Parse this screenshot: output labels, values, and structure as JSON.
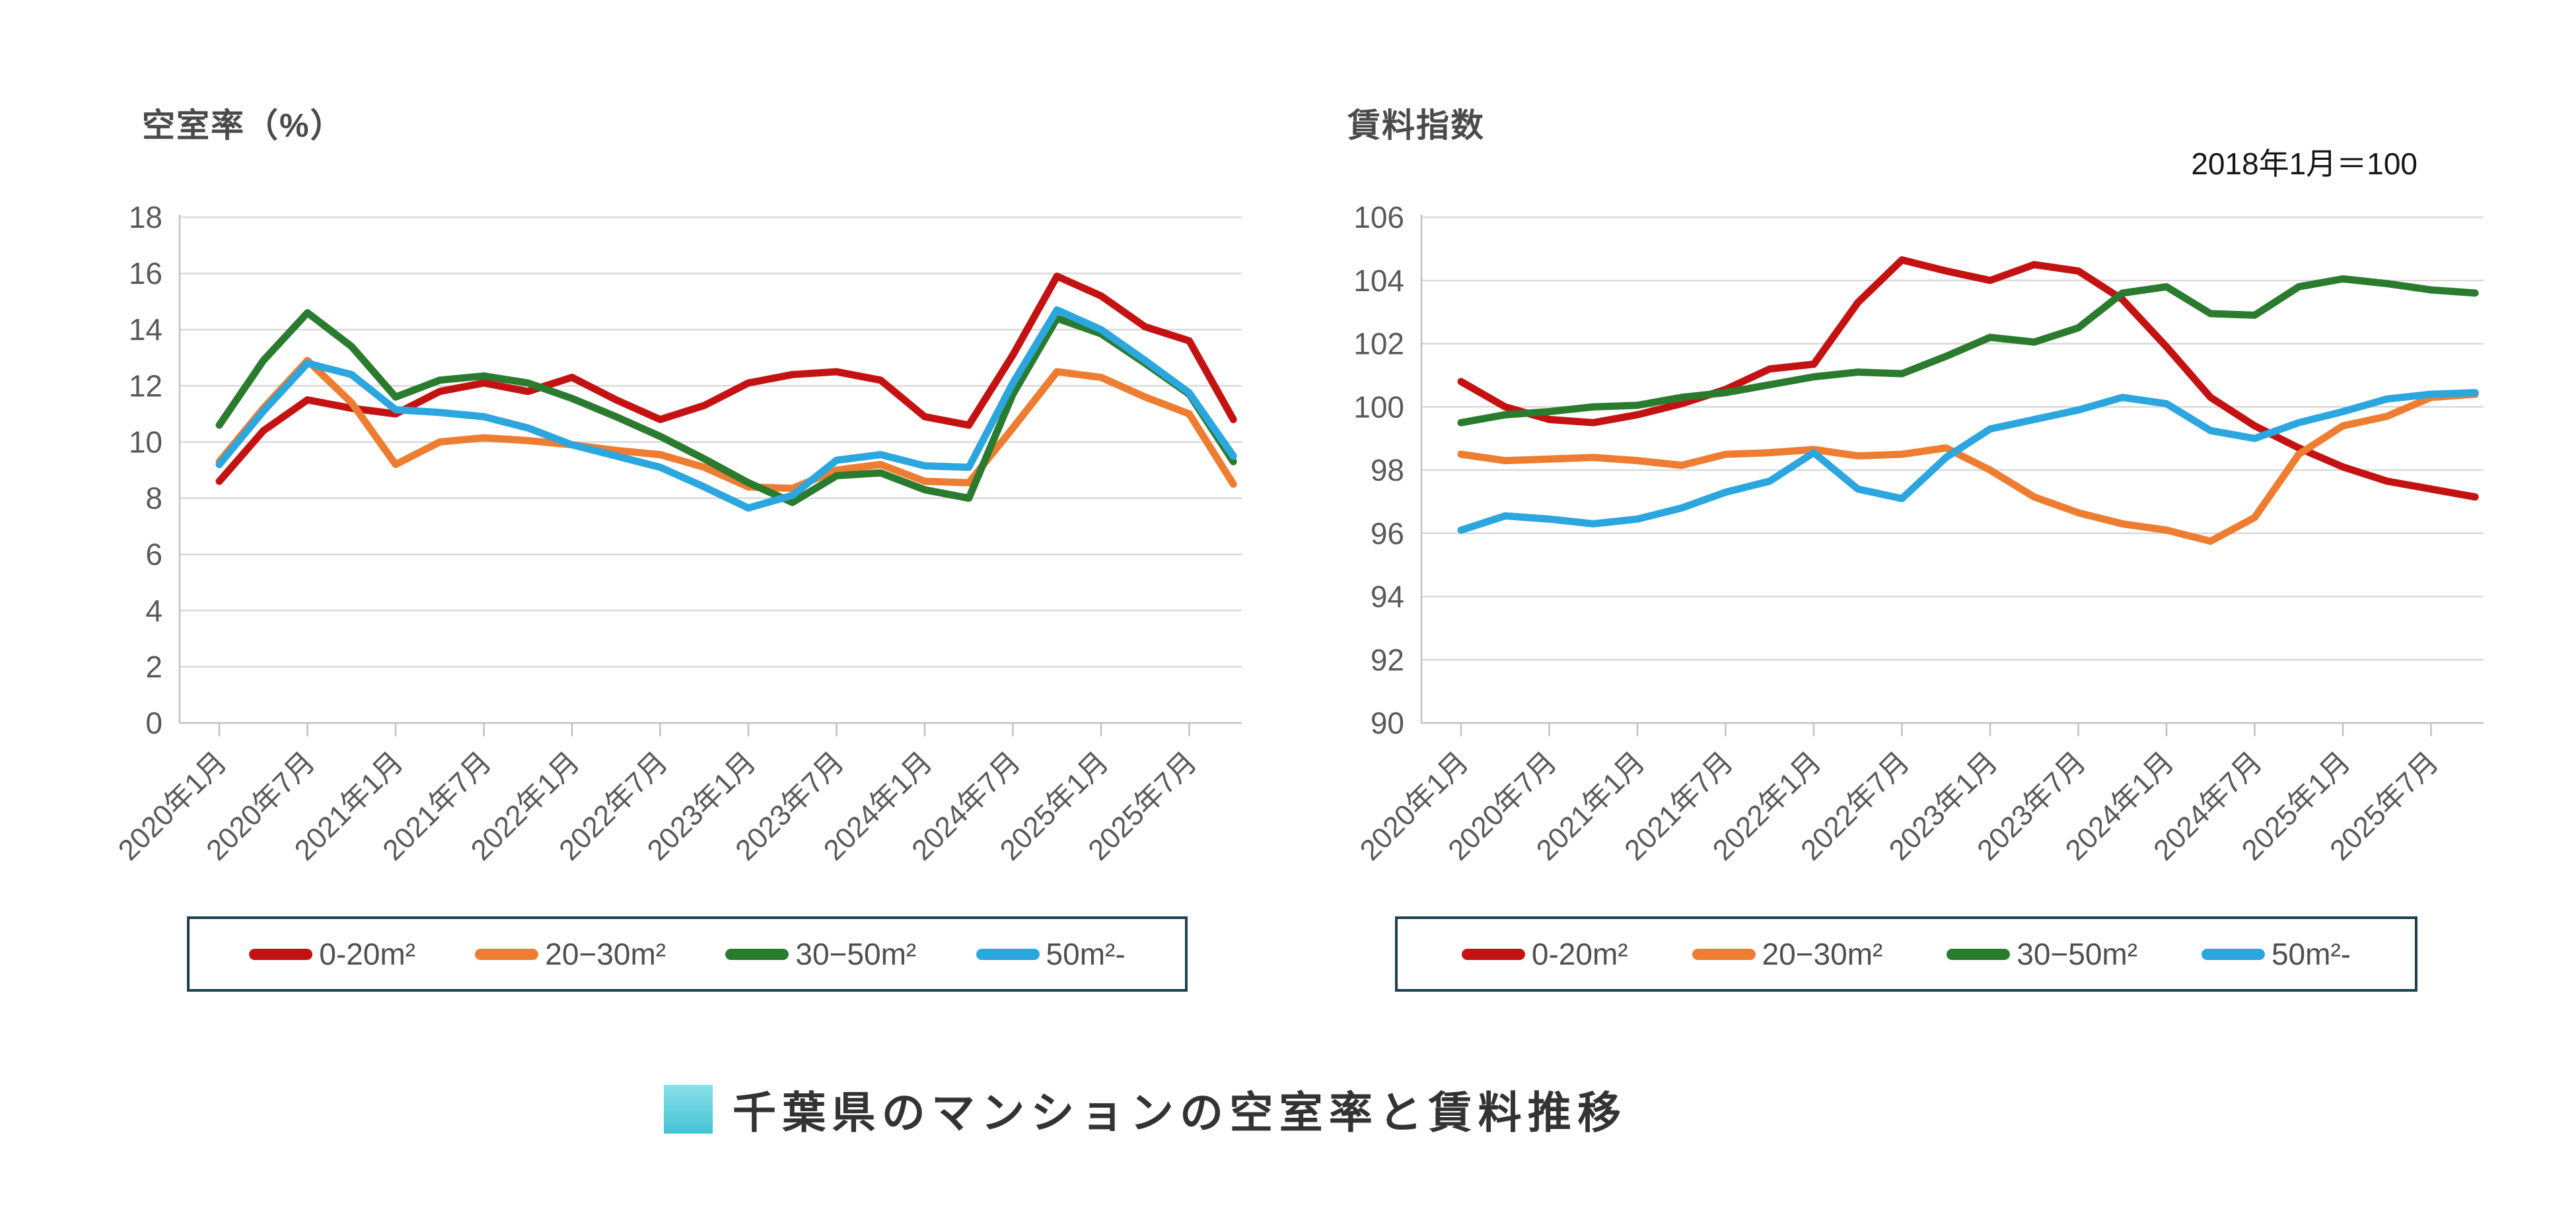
{
  "page": {
    "background": "#ffffff"
  },
  "legend": {
    "border_color": "#1b4050",
    "items": [
      {
        "label": "0-20m²",
        "color": "#c41212"
      },
      {
        "label": "20−30m²",
        "color": "#ee7d31"
      },
      {
        "label": "30−50m²",
        "color": "#2a7b2e"
      },
      {
        "label": "50m²-",
        "color": "#2ba6de"
      }
    ]
  },
  "footer": {
    "title": "千葉県のマンションの空室率と賃料推移",
    "square_color": "#4ac6d6"
  },
  "chart_data": [
    {
      "type": "line",
      "title": "空室率（%）",
      "xlabel": "",
      "ylabel": "",
      "ylim": [
        0,
        18
      ],
      "ytick_step": 2,
      "grid": true,
      "legend_position": "bottom-box",
      "x_tick_labels": [
        "2020年1月",
        "2020年7月",
        "2021年1月",
        "2021年7月",
        "2022年1月",
        "2022年7月",
        "2023年1月",
        "2023年7月",
        "2024年1月",
        "2024年7月",
        "2025年1月",
        "2025年7月"
      ],
      "x_quarterly": [
        "2020-01",
        "2020-04",
        "2020-07",
        "2020-10",
        "2021-01",
        "2021-04",
        "2021-07",
        "2021-10",
        "2022-01",
        "2022-04",
        "2022-07",
        "2022-10",
        "2023-01",
        "2023-04",
        "2023-07",
        "2023-10",
        "2024-01",
        "2024-04",
        "2024-07",
        "2024-10",
        "2025-01",
        "2025-04",
        "2025-07",
        "2025-10"
      ],
      "series": [
        {
          "name": "0-20m²",
          "color": "#c41212",
          "values": [
            8.6,
            10.4,
            11.5,
            11.2,
            11.0,
            11.8,
            12.1,
            11.8,
            12.3,
            11.5,
            10.8,
            11.3,
            12.1,
            12.4,
            12.5,
            12.2,
            10.9,
            10.6,
            13.1,
            15.9,
            15.2,
            14.1,
            13.6,
            10.8
          ]
        },
        {
          "name": "20−30m²",
          "color": "#ee7d31",
          "values": [
            9.3,
            11.2,
            12.9,
            11.4,
            9.2,
            10.0,
            10.15,
            10.05,
            9.9,
            9.7,
            9.55,
            9.1,
            8.4,
            8.35,
            9.0,
            9.2,
            8.6,
            8.55,
            10.5,
            12.5,
            12.3,
            11.6,
            11.0,
            8.5
          ]
        },
        {
          "name": "30−50m²",
          "color": "#2a7b2e",
          "values": [
            10.6,
            12.9,
            14.6,
            13.4,
            11.6,
            12.2,
            12.35,
            12.1,
            11.55,
            10.9,
            10.2,
            9.4,
            8.55,
            7.85,
            8.8,
            8.9,
            8.3,
            8.0,
            11.7,
            14.4,
            13.85,
            12.8,
            11.7,
            9.3
          ]
        },
        {
          "name": "50m²-",
          "color": "#2ba6de",
          "values": [
            9.2,
            11.1,
            12.8,
            12.4,
            11.15,
            11.05,
            10.9,
            10.5,
            9.9,
            9.5,
            9.1,
            8.4,
            7.65,
            8.1,
            9.35,
            9.55,
            9.15,
            9.1,
            12.1,
            14.7,
            14.0,
            12.9,
            11.75,
            9.5
          ]
        }
      ]
    },
    {
      "type": "line",
      "title": "賃料指数",
      "annotation": "2018年1月＝100",
      "xlabel": "",
      "ylabel": "",
      "ylim": [
        90,
        106
      ],
      "ytick_step": 2,
      "grid": true,
      "legend_position": "bottom-box",
      "x_tick_labels": [
        "2020年1月",
        "2020年7月",
        "2021年1月",
        "2021年7月",
        "2022年1月",
        "2022年7月",
        "2023年1月",
        "2023年7月",
        "2024年1月",
        "2024年7月",
        "2025年1月",
        "2025年7月"
      ],
      "x_quarterly": [
        "2020-01",
        "2020-04",
        "2020-07",
        "2020-10",
        "2021-01",
        "2021-04",
        "2021-07",
        "2021-10",
        "2022-01",
        "2022-04",
        "2022-07",
        "2022-10",
        "2023-01",
        "2023-04",
        "2023-07",
        "2023-10",
        "2024-01",
        "2024-04",
        "2024-07",
        "2024-10",
        "2025-01",
        "2025-04",
        "2025-07",
        "2025-10"
      ],
      "series": [
        {
          "name": "0-20m²",
          "color": "#c41212",
          "values": [
            100.8,
            100.0,
            99.6,
            99.5,
            99.75,
            100.1,
            100.55,
            101.2,
            101.35,
            103.3,
            104.65,
            104.3,
            104.0,
            104.5,
            104.3,
            103.4,
            101.9,
            100.3,
            99.4,
            98.7,
            98.1,
            97.65,
            97.4,
            97.15
          ]
        },
        {
          "name": "20−30m²",
          "color": "#ee7d31",
          "values": [
            98.5,
            98.3,
            98.35,
            98.4,
            98.3,
            98.15,
            98.5,
            98.55,
            98.65,
            98.45,
            98.5,
            98.7,
            98.0,
            97.15,
            96.65,
            96.3,
            96.1,
            95.75,
            96.5,
            98.5,
            99.4,
            99.7,
            100.3,
            100.4
          ]
        },
        {
          "name": "30−50m²",
          "color": "#2a7b2e",
          "values": [
            99.5,
            99.75,
            99.85,
            100.0,
            100.05,
            100.3,
            100.45,
            100.7,
            100.95,
            101.1,
            101.05,
            101.6,
            102.2,
            102.05,
            102.5,
            103.6,
            103.8,
            102.95,
            102.9,
            103.8,
            104.05,
            103.9,
            103.7,
            103.6
          ]
        },
        {
          "name": "50m²-",
          "color": "#2ba6de",
          "values": [
            96.1,
            96.55,
            96.45,
            96.3,
            96.45,
            96.8,
            97.3,
            97.65,
            98.55,
            97.4,
            97.1,
            98.4,
            99.3,
            99.6,
            99.9,
            100.3,
            100.1,
            99.25,
            99.0,
            99.5,
            99.85,
            100.25,
            100.4,
            100.45
          ]
        }
      ]
    }
  ],
  "style": {
    "gridline_color": "#d9d9d9",
    "axis_color": "#c0c0c0",
    "tick_label_color": "#595959",
    "series_stroke_width": 11
  }
}
